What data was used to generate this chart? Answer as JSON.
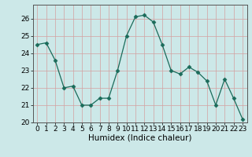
{
  "x": [
    0,
    1,
    2,
    3,
    4,
    5,
    6,
    7,
    8,
    9,
    10,
    11,
    12,
    13,
    14,
    15,
    16,
    17,
    18,
    19,
    20,
    21,
    22,
    23
  ],
  "y": [
    24.5,
    24.6,
    23.6,
    22.0,
    22.1,
    21.0,
    21.0,
    21.4,
    21.4,
    23.0,
    25.0,
    26.1,
    26.2,
    25.8,
    24.5,
    23.0,
    22.8,
    23.2,
    22.9,
    22.4,
    21.0,
    22.5,
    21.4,
    20.2
  ],
  "line_color": "#1a6b5a",
  "marker": "D",
  "marker_size": 2.5,
  "bg_color": "#cce8e8",
  "grid_color": "#b0d0d0",
  "xlabel": "Humidex (Indice chaleur)",
  "xlim": [
    -0.5,
    23.5
  ],
  "ylim": [
    20,
    26.8
  ],
  "yticks": [
    20,
    21,
    22,
    23,
    24,
    25,
    26
  ],
  "xticks": [
    0,
    1,
    2,
    3,
    4,
    5,
    6,
    7,
    8,
    9,
    10,
    11,
    12,
    13,
    14,
    15,
    16,
    17,
    18,
    19,
    20,
    21,
    22,
    23
  ],
  "xlabel_fontsize": 7.5,
  "tick_fontsize": 6.5
}
